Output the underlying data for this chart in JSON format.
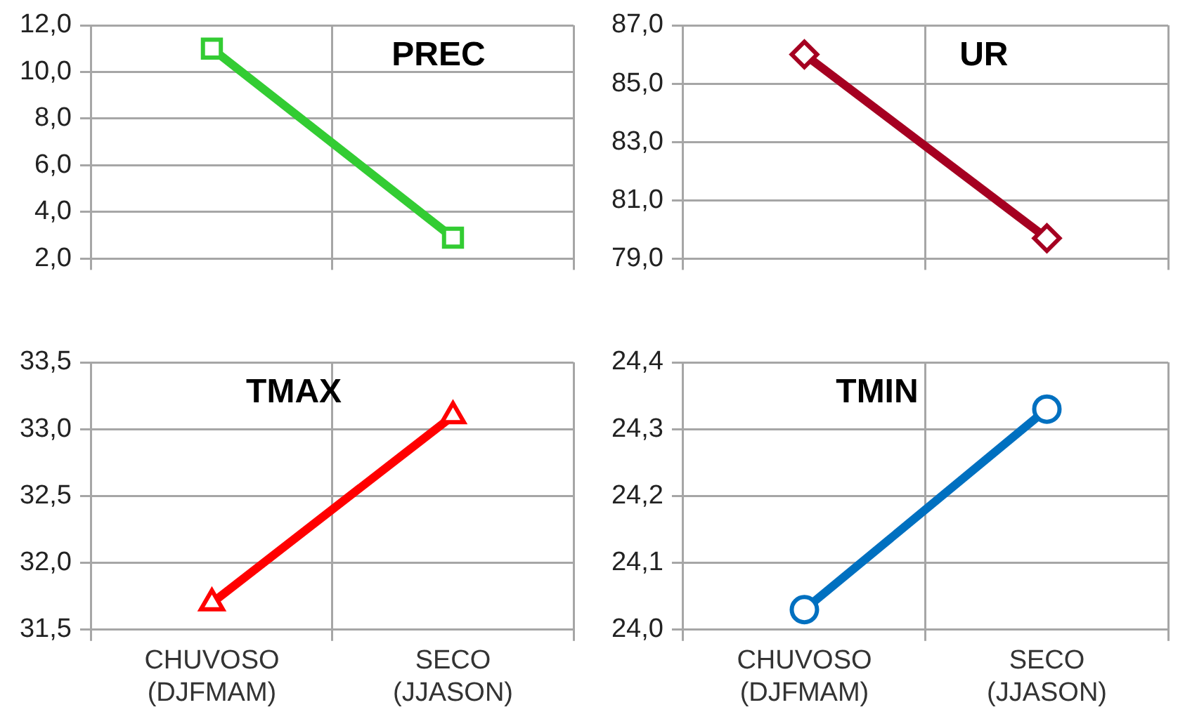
{
  "chart_data": [
    {
      "type": "line",
      "title": "PREC",
      "categories": [
        null,
        null
      ],
      "series": [
        {
          "color": "#33cc33",
          "values": [
            11.0,
            2.9
          ]
        }
      ],
      "ylim": [
        2,
        12
      ],
      "yticks": [
        {
          "value": 2,
          "label": "2,0"
        },
        {
          "value": 4,
          "label": "4,0"
        },
        {
          "value": 6,
          "label": "6,0"
        },
        {
          "value": 8,
          "label": "8,0"
        },
        {
          "value": 10,
          "label": "10,0"
        },
        {
          "value": 12,
          "label": "12,0"
        }
      ],
      "grid": true,
      "legend": false,
      "marker": "square",
      "line_style": "solid"
    },
    {
      "type": "line",
      "title": "UR",
      "categories": [
        null,
        null
      ],
      "series": [
        {
          "color": "#a50021",
          "values": [
            86.0,
            79.7
          ]
        }
      ],
      "ylim": [
        79,
        87
      ],
      "yticks": [
        {
          "value": 79,
          "label": "79,0"
        },
        {
          "value": 81,
          "label": "81,0"
        },
        {
          "value": 83,
          "label": "83,0"
        },
        {
          "value": 85,
          "label": "85,0"
        },
        {
          "value": 87,
          "label": "87,0"
        }
      ],
      "grid": true,
      "legend": false,
      "marker": "diamond",
      "line_style": "solid"
    },
    {
      "type": "line",
      "title": "TMAX",
      "categories": [
        "CHUVOSO (DJFMAM)",
        "SECO (JJASON)"
      ],
      "series": [
        {
          "color": "#ff0000",
          "values": [
            31.7,
            33.1
          ]
        }
      ],
      "ylim": [
        31.5,
        33.5
      ],
      "yticks": [
        {
          "value": 31.5,
          "label": "31,5"
        },
        {
          "value": 32,
          "label": "32,0"
        },
        {
          "value": 32.5,
          "label": "32,5"
        },
        {
          "value": 33,
          "label": "33,0"
        },
        {
          "value": 33.5,
          "label": "33,5"
        }
      ],
      "grid": true,
      "legend": false,
      "marker": "triangle",
      "line_style": "solid"
    },
    {
      "type": "line",
      "title": "TMIN",
      "categories": [
        "CHUVOSO (DJFMAM)",
        "SECO (JJASON)"
      ],
      "series": [
        {
          "color": "#0070c0",
          "values": [
            24.03,
            24.33
          ]
        }
      ],
      "ylim": [
        24.0,
        24.4
      ],
      "yticks": [
        {
          "value": 24.0,
          "label": "24,0"
        },
        {
          "value": 24.1,
          "label": "24,1"
        },
        {
          "value": 24.2,
          "label": "24,2"
        },
        {
          "value": 24.3,
          "label": "24,3"
        },
        {
          "value": 24.4,
          "label": "24,4"
        }
      ],
      "grid": true,
      "legend": false,
      "marker": "circle",
      "line_style": "solid"
    }
  ]
}
